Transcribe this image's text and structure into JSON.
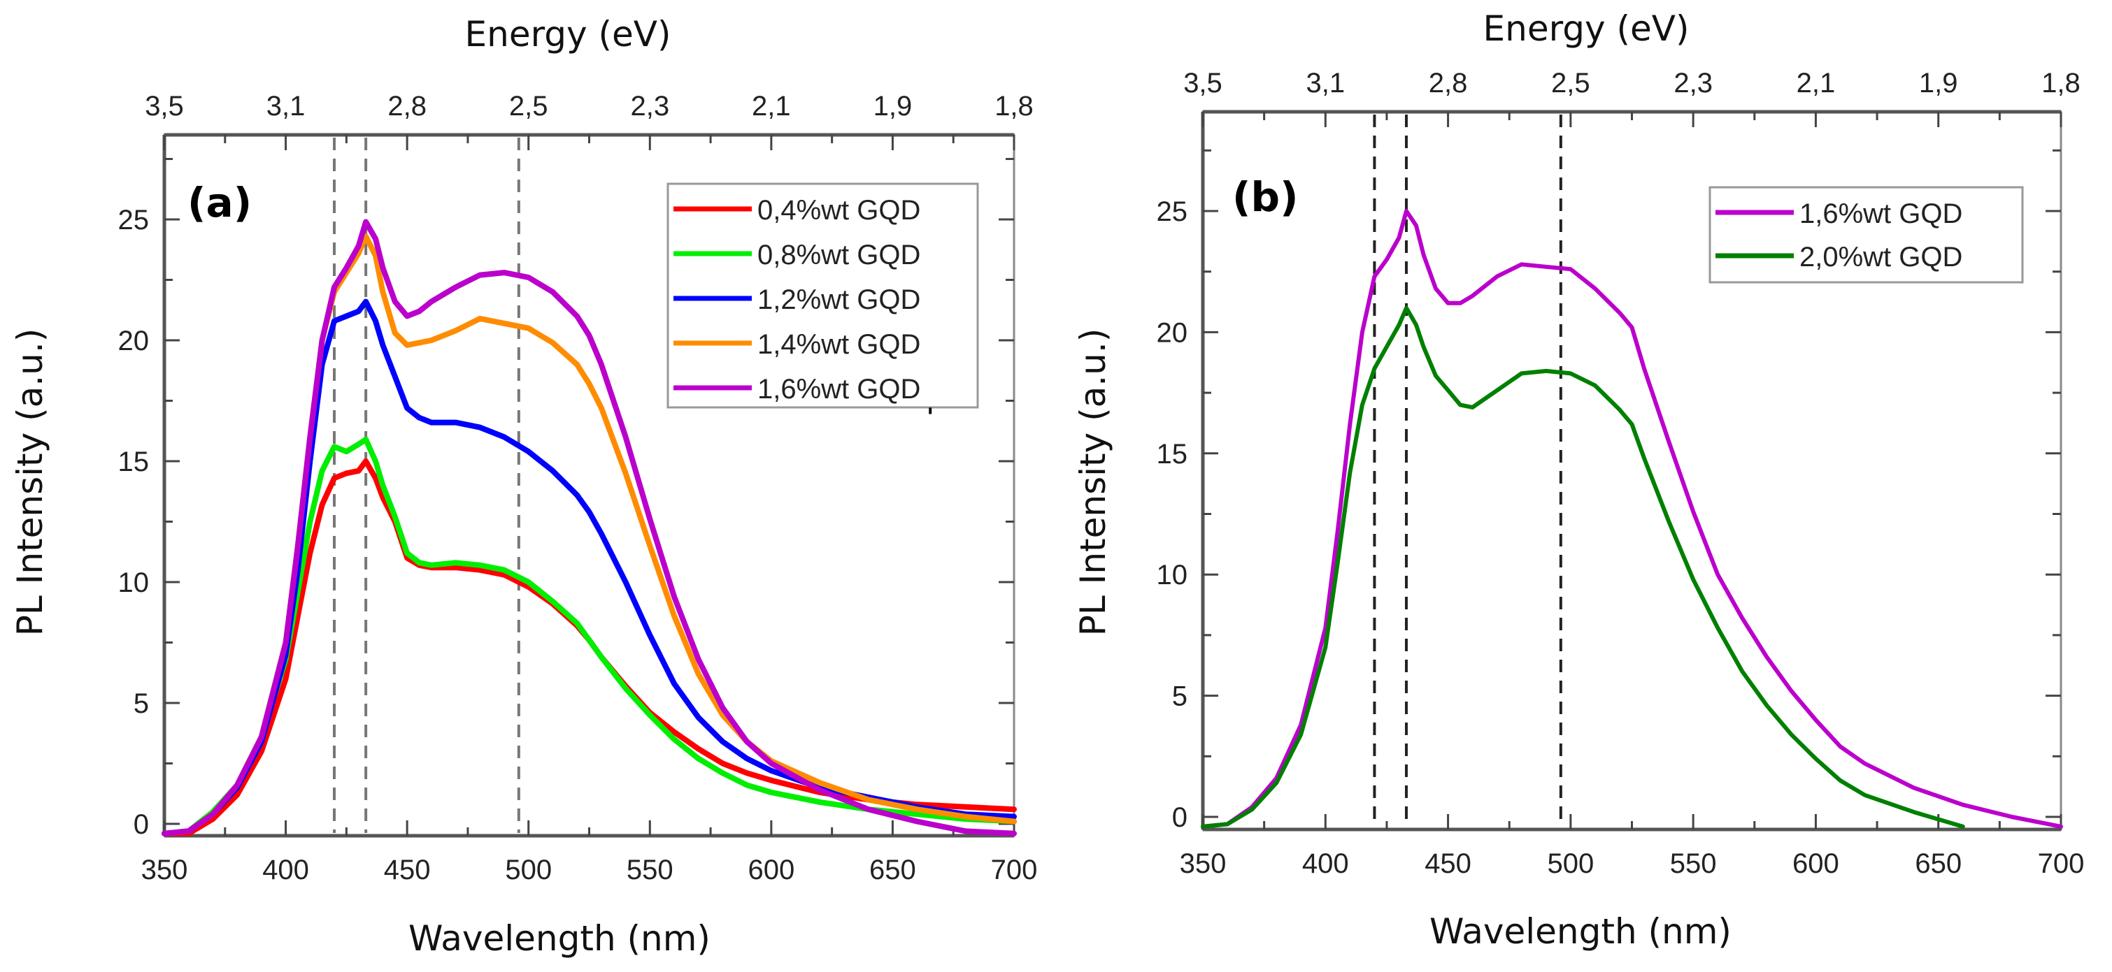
{
  "chart_data": [
    {
      "panel": "(a)",
      "type": "line",
      "title": "",
      "xlabel": "Wavelength (nm)",
      "ylabel": "PL Intensity (a.u.)",
      "top_xlabel": "Energy (eV)",
      "xlim": [
        350,
        700
      ],
      "ylim": [
        -0.5,
        27.5
      ],
      "xticks": [
        350,
        400,
        450,
        500,
        550,
        600,
        650,
        700
      ],
      "xtick_labels": [
        "350",
        "400",
        "450",
        "500",
        "550",
        "600",
        "650",
        "700"
      ],
      "yticks": [
        0,
        5,
        10,
        15,
        20,
        25
      ],
      "ytick_labels": [
        "0",
        "5",
        "10",
        "15",
        "20",
        "25"
      ],
      "top_ticks_at_wavelength": [
        350,
        400,
        450,
        500,
        550,
        600,
        650,
        700
      ],
      "top_tick_labels": [
        "3,5",
        "3,1",
        "2,8",
        "2,5",
        "2,3",
        "2,1",
        "1,9",
        "1,8"
      ],
      "guide_lines_nm": [
        420,
        433,
        496
      ],
      "guide_color": "#777777",
      "grid": false,
      "legend_position": "top-right",
      "x": [
        350,
        360,
        370,
        380,
        390,
        400,
        405,
        410,
        415,
        420,
        425,
        430,
        433,
        437,
        440,
        445,
        450,
        455,
        460,
        470,
        480,
        490,
        500,
        510,
        520,
        525,
        530,
        540,
        550,
        560,
        570,
        580,
        590,
        600,
        620,
        640,
        660,
        680,
        700
      ],
      "series": [
        {
          "name": "0,4%wt GQD",
          "color": "#ff0000",
          "values": [
            -0.4,
            -0.4,
            0.2,
            1.2,
            3.0,
            6.0,
            8.6,
            11.2,
            13.2,
            14.3,
            14.5,
            14.6,
            15.0,
            14.3,
            13.5,
            12.5,
            11.0,
            10.7,
            10.6,
            10.6,
            10.5,
            10.3,
            9.8,
            9.1,
            8.2,
            7.6,
            6.9,
            5.7,
            4.6,
            3.8,
            3.1,
            2.5,
            2.1,
            1.8,
            1.3,
            1.0,
            0.8,
            0.7,
            0.6
          ]
        },
        {
          "name": "0,8%wt GQD",
          "color": "#00ee00",
          "values": [
            -0.4,
            -0.3,
            0.5,
            1.6,
            3.6,
            6.8,
            9.6,
            12.5,
            14.6,
            15.6,
            15.4,
            15.7,
            15.9,
            15.0,
            14.0,
            12.7,
            11.2,
            10.8,
            10.7,
            10.8,
            10.7,
            10.5,
            10.0,
            9.2,
            8.3,
            7.6,
            6.9,
            5.6,
            4.5,
            3.5,
            2.7,
            2.1,
            1.6,
            1.3,
            0.9,
            0.6,
            0.4,
            0.2,
            0.1
          ]
        },
        {
          "name": "1,2%wt GQD",
          "color": "#0000ff",
          "values": [
            -0.4,
            -0.3,
            0.4,
            1.5,
            3.4,
            7.0,
            10.5,
            15.0,
            19.0,
            20.8,
            21.0,
            21.2,
            21.6,
            20.8,
            19.8,
            18.5,
            17.2,
            16.8,
            16.6,
            16.6,
            16.4,
            16.0,
            15.4,
            14.6,
            13.6,
            12.9,
            12.0,
            10.0,
            7.8,
            5.8,
            4.4,
            3.4,
            2.7,
            2.2,
            1.5,
            1.1,
            0.7,
            0.4,
            0.3
          ]
        },
        {
          "name": "1,4%wt GQD",
          "color": "#ff8c00",
          "values": [
            -0.4,
            -0.3,
            0.4,
            1.6,
            3.6,
            7.5,
            11.5,
            16.0,
            20.0,
            22.0,
            22.8,
            23.6,
            24.3,
            23.5,
            22.0,
            20.3,
            19.8,
            19.9,
            20.0,
            20.4,
            20.9,
            20.7,
            20.5,
            19.9,
            19.0,
            18.2,
            17.2,
            14.5,
            11.5,
            8.6,
            6.2,
            4.5,
            3.4,
            2.6,
            1.7,
            1.0,
            0.6,
            0.3,
            0.1
          ]
        },
        {
          "name": "1,6%wt GQD",
          "color": "#bb00cc",
          "values": [
            -0.4,
            -0.3,
            0.4,
            1.6,
            3.6,
            7.5,
            11.5,
            16.0,
            20.0,
            22.2,
            23.0,
            23.9,
            24.9,
            24.2,
            23.0,
            21.6,
            21.0,
            21.2,
            21.6,
            22.2,
            22.7,
            22.8,
            22.6,
            22.0,
            21.0,
            20.2,
            19.0,
            16.0,
            12.6,
            9.4,
            6.8,
            4.8,
            3.4,
            2.5,
            1.4,
            0.6,
            0.1,
            -0.3,
            -0.4
          ]
        }
      ]
    },
    {
      "panel": "(b)",
      "type": "line",
      "title": "",
      "xlabel": "Wavelength (nm)",
      "ylabel": "PL Intensity (a.u.)",
      "top_xlabel": "Energy (eV)",
      "xlim": [
        350,
        700
      ],
      "ylim": [
        -0.5,
        27.5
      ],
      "xticks": [
        350,
        400,
        450,
        500,
        550,
        600,
        650,
        700
      ],
      "xtick_labels": [
        "350",
        "400",
        "450",
        "500",
        "550",
        "600",
        "650",
        "700"
      ],
      "yticks": [
        0,
        5,
        10,
        15,
        20,
        25
      ],
      "ytick_labels": [
        "0",
        "5",
        "10",
        "15",
        "20",
        "25"
      ],
      "top_ticks_at_wavelength": [
        350,
        400,
        450,
        500,
        550,
        600,
        650,
        700
      ],
      "top_tick_labels": [
        "3,5",
        "3,1",
        "2,8",
        "2,5",
        "2,3",
        "2,1",
        "1,9",
        "1,8"
      ],
      "guide_lines_nm": [
        420,
        433,
        496
      ],
      "guide_color": "#222222",
      "grid": false,
      "legend_position": "top-right",
      "x": [
        350,
        360,
        370,
        380,
        390,
        400,
        405,
        410,
        415,
        420,
        425,
        430,
        433,
        437,
        440,
        445,
        450,
        455,
        460,
        470,
        480,
        490,
        500,
        510,
        520,
        525,
        530,
        540,
        550,
        560,
        570,
        580,
        590,
        600,
        610,
        620,
        640,
        660,
        680,
        700
      ],
      "series": [
        {
          "name": "1,6%wt GQD",
          "color": "#bb00cc",
          "values": [
            -0.4,
            -0.3,
            0.4,
            1.6,
            3.8,
            7.8,
            11.8,
            16.2,
            20.0,
            22.3,
            23.0,
            23.9,
            25.0,
            24.4,
            23.2,
            21.8,
            21.2,
            21.2,
            21.5,
            22.3,
            22.8,
            22.7,
            22.6,
            21.8,
            20.8,
            20.2,
            18.5,
            15.5,
            12.6,
            10.0,
            8.2,
            6.6,
            5.2,
            4.0,
            2.9,
            2.2,
            1.2,
            0.5,
            0.0,
            -0.4
          ]
        },
        {
          "name": "2,0%wt GQD",
          "color": "#008000",
          "values": [
            -0.4,
            -0.3,
            0.3,
            1.4,
            3.4,
            7.0,
            10.5,
            14.2,
            17.0,
            18.5,
            19.4,
            20.3,
            21.0,
            20.3,
            19.4,
            18.2,
            17.6,
            17.0,
            16.9,
            17.6,
            18.3,
            18.4,
            18.3,
            17.8,
            16.8,
            16.2,
            14.8,
            12.2,
            9.8,
            7.8,
            6.0,
            4.6,
            3.4,
            2.4,
            1.5,
            0.9,
            0.2,
            -0.4,
            null,
            null
          ]
        }
      ]
    }
  ],
  "artifacts": {
    "stray_mark": "'"
  }
}
